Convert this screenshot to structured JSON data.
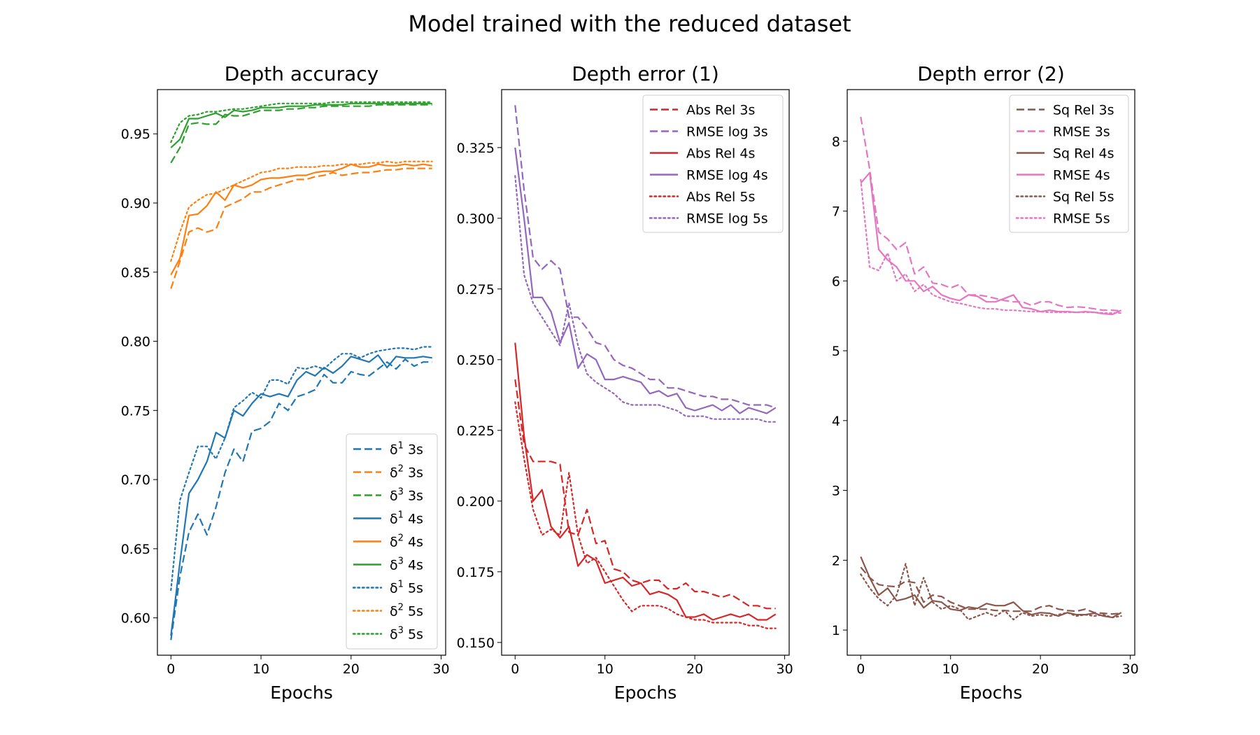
{
  "figure": {
    "title": "Model trained with the reduced dataset"
  },
  "chart_data": [
    {
      "type": "line",
      "title": "Depth accuracy",
      "xlabel": "Epochs",
      "ylabel": "",
      "xlim": [
        -1.5,
        30.5
      ],
      "ylim": [
        0.573,
        0.982
      ],
      "xticks": [
        0,
        10,
        20,
        30
      ],
      "xtick_labels": [
        "0",
        "10",
        "20",
        "30"
      ],
      "yticks": [
        0.6,
        0.65,
        0.7,
        0.75,
        0.8,
        0.85,
        0.9,
        0.95
      ],
      "ytick_labels": [
        "0.60",
        "0.65",
        "0.70",
        "0.75",
        "0.80",
        "0.85",
        "0.90",
        "0.95"
      ],
      "legend_position": "lower-right",
      "grid": false,
      "series": [
        {
          "name": "δ1 3s",
          "base": "δ",
          "sup": "1",
          "suffix": " 3s",
          "color": "#1f77b4",
          "style": "dashed",
          "values": [
            0.584,
            0.63,
            0.662,
            0.675,
            0.66,
            0.68,
            0.705,
            0.722,
            0.713,
            0.735,
            0.737,
            0.742,
            0.755,
            0.75,
            0.76,
            0.762,
            0.765,
            0.776,
            0.77,
            0.77,
            0.778,
            0.776,
            0.775,
            0.78,
            0.785,
            0.78,
            0.787,
            0.782,
            0.785,
            0.785
          ]
        },
        {
          "name": "δ2 3s",
          "base": "δ",
          "sup": "2",
          "suffix": " 3s",
          "color": "#ff7f0e",
          "style": "dashed",
          "values": [
            0.838,
            0.858,
            0.879,
            0.882,
            0.879,
            0.881,
            0.897,
            0.9,
            0.903,
            0.908,
            0.908,
            0.911,
            0.913,
            0.915,
            0.917,
            0.917,
            0.919,
            0.92,
            0.922,
            0.92,
            0.921,
            0.922,
            0.922,
            0.923,
            0.924,
            0.924,
            0.925,
            0.925,
            0.925,
            0.925
          ]
        },
        {
          "name": "δ3 3s",
          "base": "δ",
          "sup": "3",
          "suffix": " 3s",
          "color": "#2ca02c",
          "style": "dashed",
          "values": [
            0.929,
            0.94,
            0.957,
            0.958,
            0.957,
            0.957,
            0.964,
            0.963,
            0.963,
            0.965,
            0.967,
            0.967,
            0.967,
            0.968,
            0.968,
            0.969,
            0.969,
            0.97,
            0.97,
            0.97,
            0.97,
            0.97,
            0.97,
            0.971,
            0.971,
            0.971,
            0.971,
            0.971,
            0.971,
            0.971
          ]
        },
        {
          "name": "δ1 4s",
          "base": "δ",
          "sup": "1",
          "suffix": " 4s",
          "color": "#1f77b4",
          "style": "solid",
          "values": [
            0.587,
            0.64,
            0.69,
            0.7,
            0.713,
            0.734,
            0.73,
            0.75,
            0.746,
            0.755,
            0.762,
            0.76,
            0.762,
            0.76,
            0.772,
            0.778,
            0.775,
            0.781,
            0.777,
            0.782,
            0.789,
            0.787,
            0.785,
            0.79,
            0.781,
            0.789,
            0.788,
            0.788,
            0.789,
            0.788
          ]
        },
        {
          "name": "δ2 4s",
          "base": "δ",
          "sup": "2",
          "suffix": " 4s",
          "color": "#ff7f0e",
          "style": "solid",
          "values": [
            0.848,
            0.86,
            0.891,
            0.892,
            0.898,
            0.908,
            0.902,
            0.913,
            0.911,
            0.913,
            0.917,
            0.918,
            0.918,
            0.919,
            0.92,
            0.92,
            0.922,
            0.923,
            0.923,
            0.925,
            0.928,
            0.926,
            0.926,
            0.928,
            0.927,
            0.927,
            0.928,
            0.927,
            0.928,
            0.927
          ]
        },
        {
          "name": "δ3 4s",
          "base": "δ",
          "sup": "3",
          "suffix": " 4s",
          "color": "#2ca02c",
          "style": "solid",
          "values": [
            0.94,
            0.946,
            0.961,
            0.961,
            0.963,
            0.965,
            0.962,
            0.967,
            0.966,
            0.967,
            0.969,
            0.969,
            0.969,
            0.97,
            0.97,
            0.97,
            0.971,
            0.971,
            0.971,
            0.971,
            0.972,
            0.972,
            0.972,
            0.972,
            0.972,
            0.972,
            0.972,
            0.972,
            0.972,
            0.972
          ]
        },
        {
          "name": "δ1 5s",
          "base": "δ",
          "sup": "1",
          "suffix": " 5s",
          "color": "#1f77b4",
          "style": "dotted",
          "values": [
            0.62,
            0.685,
            0.705,
            0.724,
            0.724,
            0.715,
            0.73,
            0.752,
            0.757,
            0.763,
            0.759,
            0.772,
            0.772,
            0.769,
            0.781,
            0.78,
            0.782,
            0.78,
            0.786,
            0.791,
            0.791,
            0.788,
            0.791,
            0.793,
            0.794,
            0.795,
            0.795,
            0.794,
            0.796,
            0.796
          ]
        },
        {
          "name": "δ2 5s",
          "base": "δ",
          "sup": "2",
          "suffix": " 5s",
          "color": "#ff7f0e",
          "style": "dotted",
          "values": [
            0.858,
            0.879,
            0.897,
            0.902,
            0.906,
            0.907,
            0.91,
            0.913,
            0.916,
            0.919,
            0.922,
            0.923,
            0.925,
            0.925,
            0.926,
            0.926,
            0.926,
            0.927,
            0.927,
            0.928,
            0.928,
            0.928,
            0.929,
            0.929,
            0.93,
            0.929,
            0.93,
            0.93,
            0.93,
            0.93
          ]
        },
        {
          "name": "δ3 5s",
          "base": "δ",
          "sup": "3",
          "suffix": " 5s",
          "color": "#2ca02c",
          "style": "dotted",
          "values": [
            0.944,
            0.958,
            0.963,
            0.964,
            0.966,
            0.966,
            0.967,
            0.968,
            0.968,
            0.969,
            0.97,
            0.971,
            0.972,
            0.972,
            0.972,
            0.972,
            0.972,
            0.972,
            0.973,
            0.973,
            0.973,
            0.973,
            0.973,
            0.973,
            0.973,
            0.973,
            0.973,
            0.973,
            0.973,
            0.973
          ]
        }
      ]
    },
    {
      "type": "line",
      "title": "Depth error (1)",
      "xlabel": "Epochs",
      "ylabel": "",
      "xlim": [
        -1.5,
        30.5
      ],
      "ylim": [
        0.1455,
        0.3455
      ],
      "xticks": [
        0,
        10,
        20,
        30
      ],
      "xtick_labels": [
        "0",
        "10",
        "20",
        "30"
      ],
      "yticks": [
        0.15,
        0.175,
        0.2,
        0.225,
        0.25,
        0.275,
        0.3,
        0.325
      ],
      "ytick_labels": [
        "0.150",
        "0.175",
        "0.200",
        "0.225",
        "0.250",
        "0.275",
        "0.300",
        "0.325"
      ],
      "legend_position": "upper-right",
      "grid": false,
      "series": [
        {
          "name": "Abs Rel 3s",
          "base": "Abs Rel 3s",
          "sup": "",
          "suffix": "",
          "color": "#d62728",
          "style": "dashed",
          "values": [
            0.243,
            0.22,
            0.214,
            0.214,
            0.214,
            0.213,
            0.189,
            0.188,
            0.197,
            0.185,
            0.186,
            0.176,
            0.175,
            0.172,
            0.171,
            0.172,
            0.172,
            0.169,
            0.169,
            0.171,
            0.168,
            0.168,
            0.167,
            0.166,
            0.167,
            0.165,
            0.163,
            0.163,
            0.162,
            0.162
          ]
        },
        {
          "name": "RMSE log 3s",
          "base": "RMSE log 3s",
          "sup": "",
          "suffix": "",
          "color": "#9467bd",
          "style": "dashed",
          "values": [
            0.34,
            0.31,
            0.286,
            0.282,
            0.285,
            0.282,
            0.265,
            0.265,
            0.261,
            0.256,
            0.255,
            0.25,
            0.248,
            0.247,
            0.245,
            0.243,
            0.243,
            0.24,
            0.24,
            0.239,
            0.238,
            0.237,
            0.237,
            0.236,
            0.236,
            0.235,
            0.234,
            0.234,
            0.234,
            0.233
          ]
        },
        {
          "name": "Abs Rel 4s",
          "base": "Abs Rel 4s",
          "sup": "",
          "suffix": "",
          "color": "#d62728",
          "style": "solid",
          "values": [
            0.256,
            0.223,
            0.2,
            0.204,
            0.191,
            0.187,
            0.191,
            0.177,
            0.181,
            0.179,
            0.171,
            0.172,
            0.173,
            0.17,
            0.171,
            0.167,
            0.168,
            0.167,
            0.165,
            0.159,
            0.159,
            0.16,
            0.158,
            0.159,
            0.16,
            0.159,
            0.16,
            0.158,
            0.158,
            0.16
          ]
        },
        {
          "name": "RMSE log 4s",
          "base": "RMSE log 4s",
          "sup": "",
          "suffix": "",
          "color": "#9467bd",
          "style": "solid",
          "values": [
            0.325,
            0.3,
            0.272,
            0.272,
            0.267,
            0.256,
            0.263,
            0.247,
            0.252,
            0.25,
            0.243,
            0.243,
            0.244,
            0.243,
            0.242,
            0.238,
            0.239,
            0.237,
            0.238,
            0.233,
            0.232,
            0.233,
            0.234,
            0.232,
            0.234,
            0.231,
            0.233,
            0.232,
            0.231,
            0.233
          ]
        },
        {
          "name": "Abs Rel 5s",
          "base": "Abs Rel 5s",
          "sup": "",
          "suffix": "",
          "color": "#d62728",
          "style": "dotted",
          "values": [
            0.235,
            0.215,
            0.197,
            0.188,
            0.19,
            0.188,
            0.21,
            0.188,
            0.178,
            0.18,
            0.175,
            0.17,
            0.165,
            0.161,
            0.163,
            0.163,
            0.163,
            0.162,
            0.16,
            0.159,
            0.158,
            0.158,
            0.157,
            0.157,
            0.157,
            0.157,
            0.156,
            0.156,
            0.155,
            0.155
          ]
        },
        {
          "name": "RMSE log 5s",
          "base": "RMSE log 5s",
          "sup": "",
          "suffix": "",
          "color": "#9467bd",
          "style": "dotted",
          "values": [
            0.315,
            0.28,
            0.27,
            0.265,
            0.26,
            0.255,
            0.27,
            0.255,
            0.245,
            0.242,
            0.24,
            0.238,
            0.235,
            0.234,
            0.234,
            0.234,
            0.234,
            0.233,
            0.232,
            0.23,
            0.23,
            0.23,
            0.229,
            0.229,
            0.229,
            0.229,
            0.229,
            0.229,
            0.228,
            0.228
          ]
        }
      ]
    },
    {
      "type": "line",
      "title": "Depth error (2)",
      "xlabel": "Epochs",
      "ylabel": "",
      "xlim": [
        -1.5,
        30.5
      ],
      "ylim": [
        0.64,
        8.74
      ],
      "xticks": [
        0,
        10,
        20,
        30
      ],
      "xtick_labels": [
        "0",
        "10",
        "20",
        "30"
      ],
      "yticks": [
        1,
        2,
        3,
        4,
        5,
        6,
        7,
        8
      ],
      "ytick_labels": [
        "1",
        "2",
        "3",
        "4",
        "5",
        "6",
        "7",
        "8"
      ],
      "legend_position": "upper-right",
      "grid": false,
      "series": [
        {
          "name": "Sq Rel 3s",
          "base": "Sq Rel 3s",
          "sup": "",
          "suffix": "",
          "color": "#8c564b",
          "style": "dashed",
          "values": [
            1.9,
            1.75,
            1.65,
            1.63,
            1.62,
            1.7,
            1.68,
            1.4,
            1.5,
            1.48,
            1.4,
            1.35,
            1.3,
            1.3,
            1.3,
            1.28,
            1.28,
            1.27,
            1.27,
            1.27,
            1.33,
            1.35,
            1.3,
            1.28,
            1.27,
            1.3,
            1.25,
            1.24,
            1.23,
            1.24
          ]
        },
        {
          "name": "RMSE 3s",
          "base": "RMSE 3s",
          "sup": "",
          "suffix": "",
          "color": "#e377c2",
          "style": "dashed",
          "values": [
            8.35,
            7.6,
            6.7,
            6.6,
            6.45,
            6.55,
            6.1,
            6.2,
            5.97,
            5.95,
            5.9,
            5.95,
            5.8,
            5.8,
            5.78,
            5.75,
            5.72,
            5.7,
            5.7,
            5.65,
            5.7,
            5.7,
            5.65,
            5.62,
            5.63,
            5.62,
            5.6,
            5.58,
            5.58,
            5.57
          ]
        },
        {
          "name": "Sq Rel 4s",
          "base": "Sq Rel 4s",
          "sup": "",
          "suffix": "",
          "color": "#8c564b",
          "style": "solid",
          "values": [
            2.05,
            1.75,
            1.5,
            1.6,
            1.42,
            1.45,
            1.5,
            1.32,
            1.42,
            1.4,
            1.3,
            1.28,
            1.33,
            1.31,
            1.38,
            1.35,
            1.35,
            1.4,
            1.28,
            1.22,
            1.25,
            1.24,
            1.2,
            1.25,
            1.22,
            1.22,
            1.24,
            1.2,
            1.18,
            1.25
          ]
        },
        {
          "name": "RMSE 4s",
          "base": "RMSE 4s",
          "sup": "",
          "suffix": "",
          "color": "#e377c2",
          "style": "solid",
          "values": [
            7.4,
            7.55,
            6.45,
            6.3,
            6.2,
            6.0,
            6.0,
            5.85,
            5.92,
            5.8,
            5.75,
            5.72,
            5.8,
            5.78,
            5.7,
            5.7,
            5.75,
            5.8,
            5.62,
            5.6,
            5.56,
            5.58,
            5.56,
            5.56,
            5.55,
            5.56,
            5.55,
            5.53,
            5.52,
            5.58
          ]
        },
        {
          "name": "Sq Rel 5s",
          "base": "Sq Rel 5s",
          "sup": "",
          "suffix": "",
          "color": "#8c564b",
          "style": "dotted",
          "values": [
            1.8,
            1.6,
            1.45,
            1.35,
            1.5,
            1.95,
            1.35,
            1.75,
            1.4,
            1.3,
            1.35,
            1.3,
            1.15,
            1.2,
            1.25,
            1.2,
            1.28,
            1.15,
            1.25,
            1.2,
            1.22,
            1.2,
            1.22,
            1.25,
            1.2,
            1.22,
            1.2,
            1.22,
            1.18,
            1.2
          ]
        },
        {
          "name": "RMSE 5s",
          "base": "RMSE 5s",
          "sup": "",
          "suffix": "",
          "color": "#e377c2",
          "style": "dotted",
          "values": [
            7.45,
            6.2,
            6.15,
            6.4,
            6.0,
            6.1,
            5.85,
            5.95,
            5.8,
            5.75,
            5.7,
            5.68,
            5.65,
            5.62,
            5.6,
            5.6,
            5.58,
            5.58,
            5.57,
            5.56,
            5.56,
            5.55,
            5.55,
            5.55,
            5.55,
            5.55,
            5.55,
            5.54,
            5.54,
            5.54
          ]
        }
      ]
    }
  ]
}
